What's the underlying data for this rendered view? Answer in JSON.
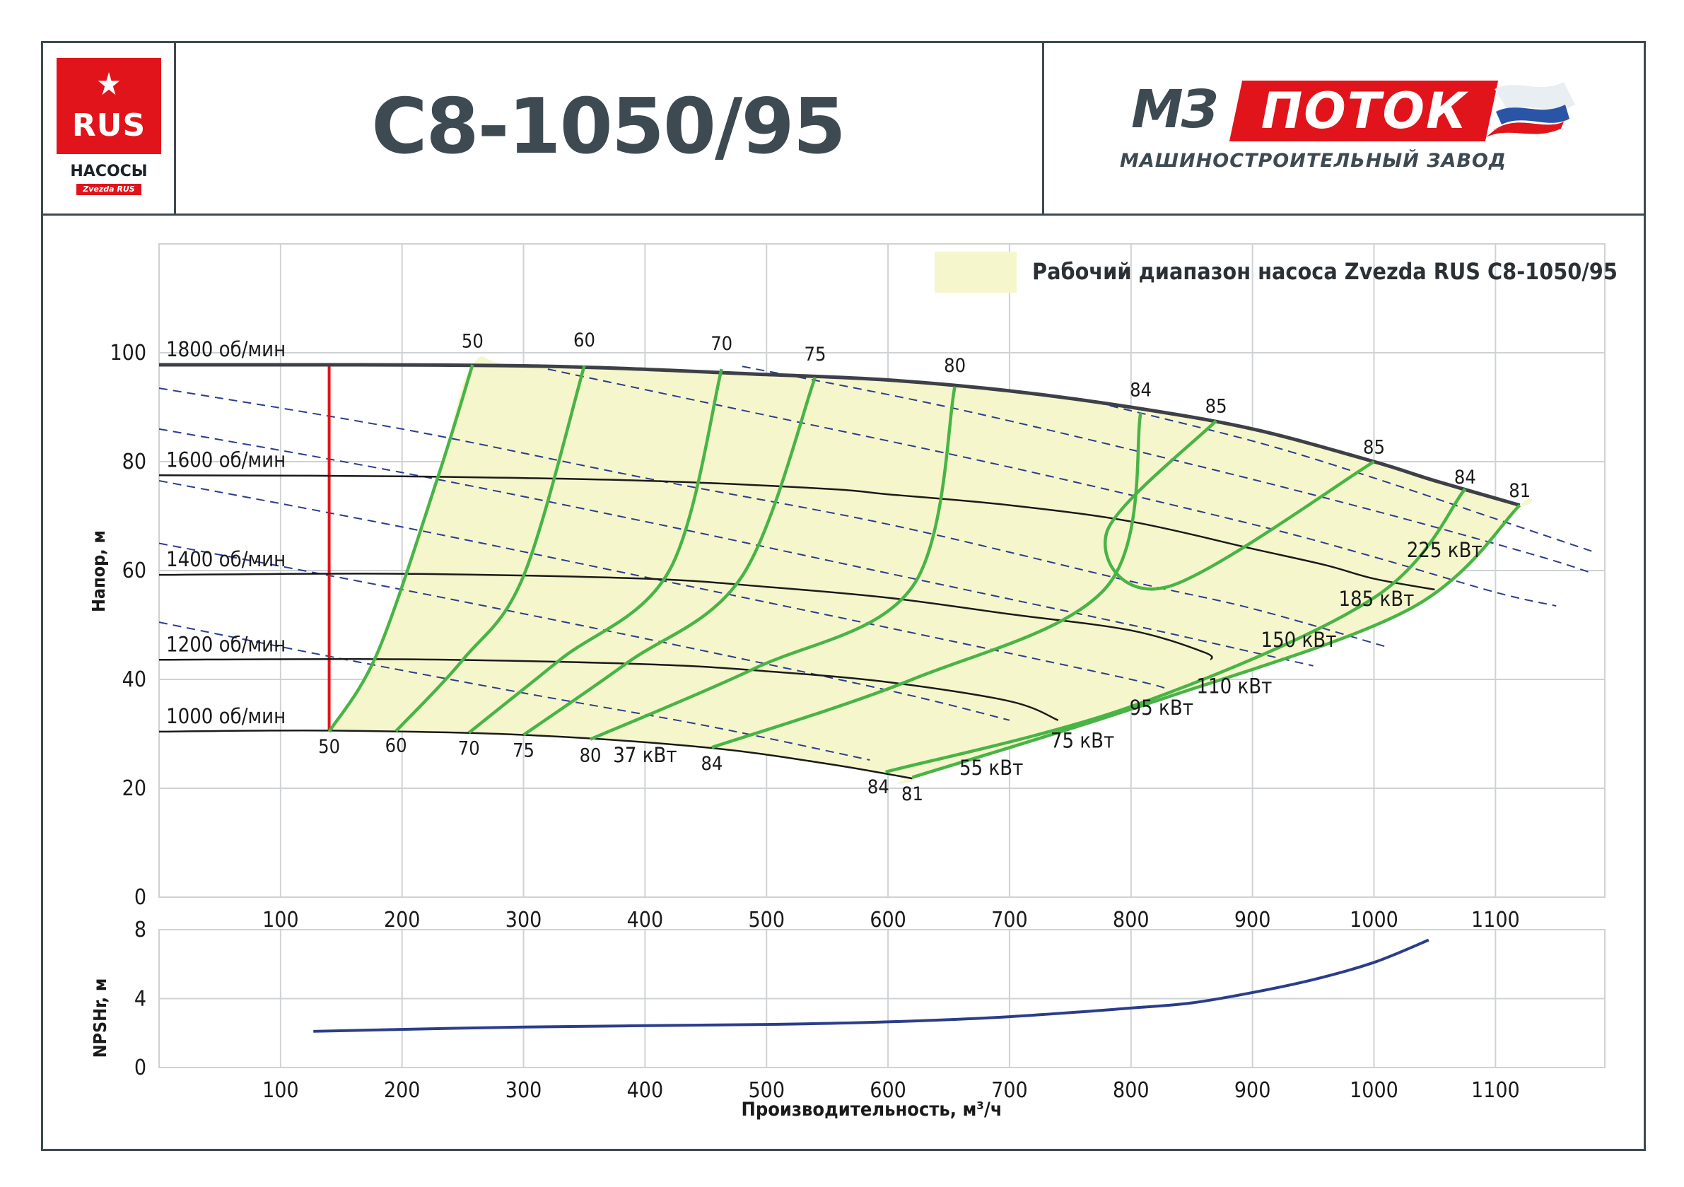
{
  "header": {
    "title": "С8-1050/95",
    "logo_left": {
      "badge": "RUS",
      "name": "НАСОСЫ",
      "tag": "Zvezda RUS"
    },
    "logo_right": {
      "mark": "МЗ",
      "name": "ПОТОК",
      "subtitle": "МАШИНОСТРОИТЕЛЬНЫЙ ЗАВОД"
    }
  },
  "colors": {
    "frame": "#3e4a52",
    "accent_red": "#e1141b",
    "range_fill": "#f5f6cc",
    "efficiency": "#49b446",
    "power": "#2b3d8a",
    "speed": "#1a1a1a"
  },
  "chart_data": [
    {
      "type": "line",
      "ylabel": "Напор, м",
      "xlim": [
        0,
        1190
      ],
      "ylim": [
        0,
        120
      ],
      "x_ticks": [
        "100",
        "200",
        "300",
        "400",
        "500",
        "600",
        "700",
        "800",
        "900",
        "1000",
        "1100"
      ],
      "y_ticks": [
        "0",
        "20",
        "40",
        "60",
        "80",
        "100"
      ],
      "grid": true,
      "legend": {
        "label": "Рабочий диапазон насоса Zvezda RUS С8-1050/95",
        "placement": "top-right"
      },
      "min_flow_line_x": 140,
      "speed_curves": [
        {
          "name": "1800 об/мин",
          "points": [
            [
              0,
              97.8
            ],
            [
              300,
              97.6
            ],
            [
              500,
              96
            ],
            [
              600,
              95
            ],
            [
              700,
              93
            ],
            [
              800,
              90
            ],
            [
              900,
              86
            ],
            [
              1000,
              80
            ],
            [
              1050,
              76.5
            ],
            [
              1120,
              72
            ]
          ]
        },
        {
          "name": "1600 об/мин",
          "points": [
            [
              0,
              77.5
            ],
            [
              200,
              77.3
            ],
            [
              400,
              76.5
            ],
            [
              550,
              75
            ],
            [
              600,
              74
            ],
            [
              700,
              72
            ],
            [
              800,
              69
            ],
            [
              900,
              64
            ],
            [
              960,
              61
            ],
            [
              1000,
              58.5
            ],
            [
              1050,
              56.5
            ]
          ]
        },
        {
          "name": "1400 об/мин",
          "points": [
            [
              0,
              59.2
            ],
            [
              200,
              59.4
            ],
            [
              400,
              58.5
            ],
            [
              500,
              57
            ],
            [
              600,
              55
            ],
            [
              700,
              52
            ],
            [
              800,
              49
            ],
            [
              860,
              45
            ],
            [
              866,
              43.6
            ]
          ]
        },
        {
          "name": "1200 об/мин",
          "points": [
            [
              0,
              43.6
            ],
            [
              200,
              43.7
            ],
            [
              400,
              42.8
            ],
            [
              500,
              41.5
            ],
            [
              600,
              39.5
            ],
            [
              700,
              36
            ],
            [
              740,
              32.5
            ]
          ]
        },
        {
          "name": "1000 об/мин",
          "points": [
            [
              0,
              30.4
            ],
            [
              140,
              30.6
            ],
            [
              300,
              29.8
            ],
            [
              450,
              27.5
            ],
            [
              550,
              24.5
            ],
            [
              620,
              21.8
            ]
          ]
        }
      ],
      "power_lines": [
        {
          "name": "37 кВт",
          "label_at": [
            400,
            24.8
          ],
          "points": [
            [
              0,
              50.5
            ],
            [
              150,
              43.8
            ],
            [
              300,
              37.5
            ],
            [
              450,
              31.5
            ],
            [
              585,
              25.2
            ]
          ]
        },
        {
          "name": "55 кВт",
          "label_at": [
            685,
            22.5
          ],
          "points": [
            [
              0,
              65
            ],
            [
              200,
              56.5
            ],
            [
              400,
              47.5
            ],
            [
              600,
              38
            ],
            [
              700,
              32.5
            ]
          ]
        },
        {
          "name": "75 кВт",
          "label_at": [
            760,
            27.5
          ],
          "points": [
            [
              0,
              76.5
            ],
            [
              200,
              68
            ],
            [
              400,
              58.8
            ],
            [
              600,
              49.5
            ],
            [
              800,
              40
            ],
            [
              830,
              38
            ]
          ]
        },
        {
          "name": "95 кВт",
          "label_at": [
            825,
            33.5
          ],
          "points": [
            [
              0,
              86
            ],
            [
              200,
              78
            ],
            [
              400,
              69
            ],
            [
              600,
              59.5
            ],
            [
              800,
              50
            ],
            [
              900,
              45
            ],
            [
              950,
              42.5
            ]
          ]
        },
        {
          "name": "110 кВт",
          "label_at": [
            885,
            37.5
          ],
          "points": [
            [
              0,
              93.5
            ],
            [
              200,
              86
            ],
            [
              400,
              77
            ],
            [
              600,
              68.5
            ],
            [
              800,
              58
            ],
            [
              900,
              53
            ],
            [
              1010,
              46
            ]
          ]
        },
        {
          "name": "150 кВт",
          "label_at": [
            938,
            46
          ],
          "points": [
            [
              320,
              97
            ],
            [
              500,
              88.5
            ],
            [
              700,
              79
            ],
            [
              900,
              68.5
            ],
            [
              1000,
              62.5
            ],
            [
              1100,
              56
            ],
            [
              1150,
              53.5
            ]
          ]
        },
        {
          "name": "185 кВт",
          "label_at": [
            1002,
            53.5
          ],
          "points": [
            [
              480,
              97.5
            ],
            [
              650,
              90
            ],
            [
              850,
              79.5
            ],
            [
              1000,
              71
            ],
            [
              1130,
              63
            ],
            [
              1180,
              59.5
            ]
          ]
        },
        {
          "name": "225 кВт",
          "label_at": [
            1058,
            62.5
          ],
          "points": [
            [
              760,
              91.5
            ],
            [
              900,
              83.8
            ],
            [
              1000,
              77
            ],
            [
              1100,
              69.5
            ],
            [
              1180,
              63.5
            ]
          ]
        }
      ],
      "efficiency_lines": [
        {
          "name": "50",
          "label_top": "50",
          "label_bottom": "50",
          "points": [
            [
              140,
              30.4
            ],
            [
              180,
              45
            ],
            [
              230,
              77.5
            ],
            [
              258,
              97.8
            ]
          ]
        },
        {
          "name": "60",
          "label_top": "60",
          "label_bottom": "60",
          "points": [
            [
              195,
              30.5
            ],
            [
              250,
              43.6
            ],
            [
              300,
              59
            ],
            [
              350,
              97.6
            ]
          ]
        },
        {
          "name": "70",
          "label_top": "70",
          "label_bottom": "70",
          "points": [
            [
              255,
              30.2
            ],
            [
              330,
              43.6
            ],
            [
              420,
              60
            ],
            [
              463,
              97
            ]
          ]
        },
        {
          "name": "75",
          "label_top": "75",
          "label_bottom": "75",
          "points": [
            [
              300,
              29.8
            ],
            [
              385,
              43
            ],
            [
              480,
              59
            ],
            [
              540,
              95.5
            ]
          ]
        },
        {
          "name": "80",
          "label_top": "80",
          "label_bottom": "80",
          "points": [
            [
              355,
              29
            ],
            [
              490,
              42
            ],
            [
              620,
              57
            ],
            [
              655,
              93.8
            ]
          ]
        },
        {
          "name": "84",
          "label_top": "84",
          "label_bottom": "84",
          "points": [
            [
              455,
              27.5
            ],
            [
              620,
              40
            ],
            [
              780,
              57
            ],
            [
              808,
              89
            ]
          ]
        },
        {
          "name": "85",
          "label_top": "85",
          "label_bottom": "85",
          "points": [
            [
              870,
              87.5
            ],
            [
              780,
              67
            ],
            [
              830,
              57
            ],
            [
              1000,
              80
            ]
          ]
        },
        {
          "name": "84",
          "label_top": "84",
          "label_bottom": "84",
          "points": [
            [
              598,
              23
            ],
            [
              800,
              35
            ],
            [
              1000,
              55
            ],
            [
              1075,
              75
            ]
          ]
        },
        {
          "name": "81",
          "label_top": "81",
          "label_bottom": "81",
          "points": [
            [
              620,
              22
            ],
            [
              820,
              36
            ],
            [
              1030,
              53
            ],
            [
              1120,
              72
            ]
          ]
        }
      ],
      "curve_labels_top": [
        "50",
        "60",
        "70",
        "75",
        "80",
        "84",
        "85",
        "85",
        "84",
        "81"
      ],
      "curve_labels_bottom": [
        "50",
        "60",
        "70",
        "75",
        "80",
        "84",
        "84",
        "81"
      ]
    },
    {
      "type": "line",
      "ylabel": "NPSHr, м",
      "xlabel": "Производительность, м³/ч",
      "xlim": [
        0,
        1190
      ],
      "ylim": [
        0,
        8
      ],
      "x_ticks": [
        "100",
        "200",
        "300",
        "400",
        "500",
        "600",
        "700",
        "800",
        "900",
        "1000",
        "1100"
      ],
      "y_ticks": [
        "0",
        "4",
        "8"
      ],
      "grid": true,
      "series": [
        {
          "points": [
            [
              127,
              2.1
            ],
            [
              300,
              2.35
            ],
            [
              500,
              2.5
            ],
            [
              600,
              2.65
            ],
            [
              700,
              2.95
            ],
            [
              800,
              3.45
            ],
            [
              850,
              3.75
            ],
            [
              900,
              4.35
            ],
            [
              950,
              5.1
            ],
            [
              1000,
              6.1
            ],
            [
              1045,
              7.4
            ]
          ]
        }
      ]
    }
  ]
}
